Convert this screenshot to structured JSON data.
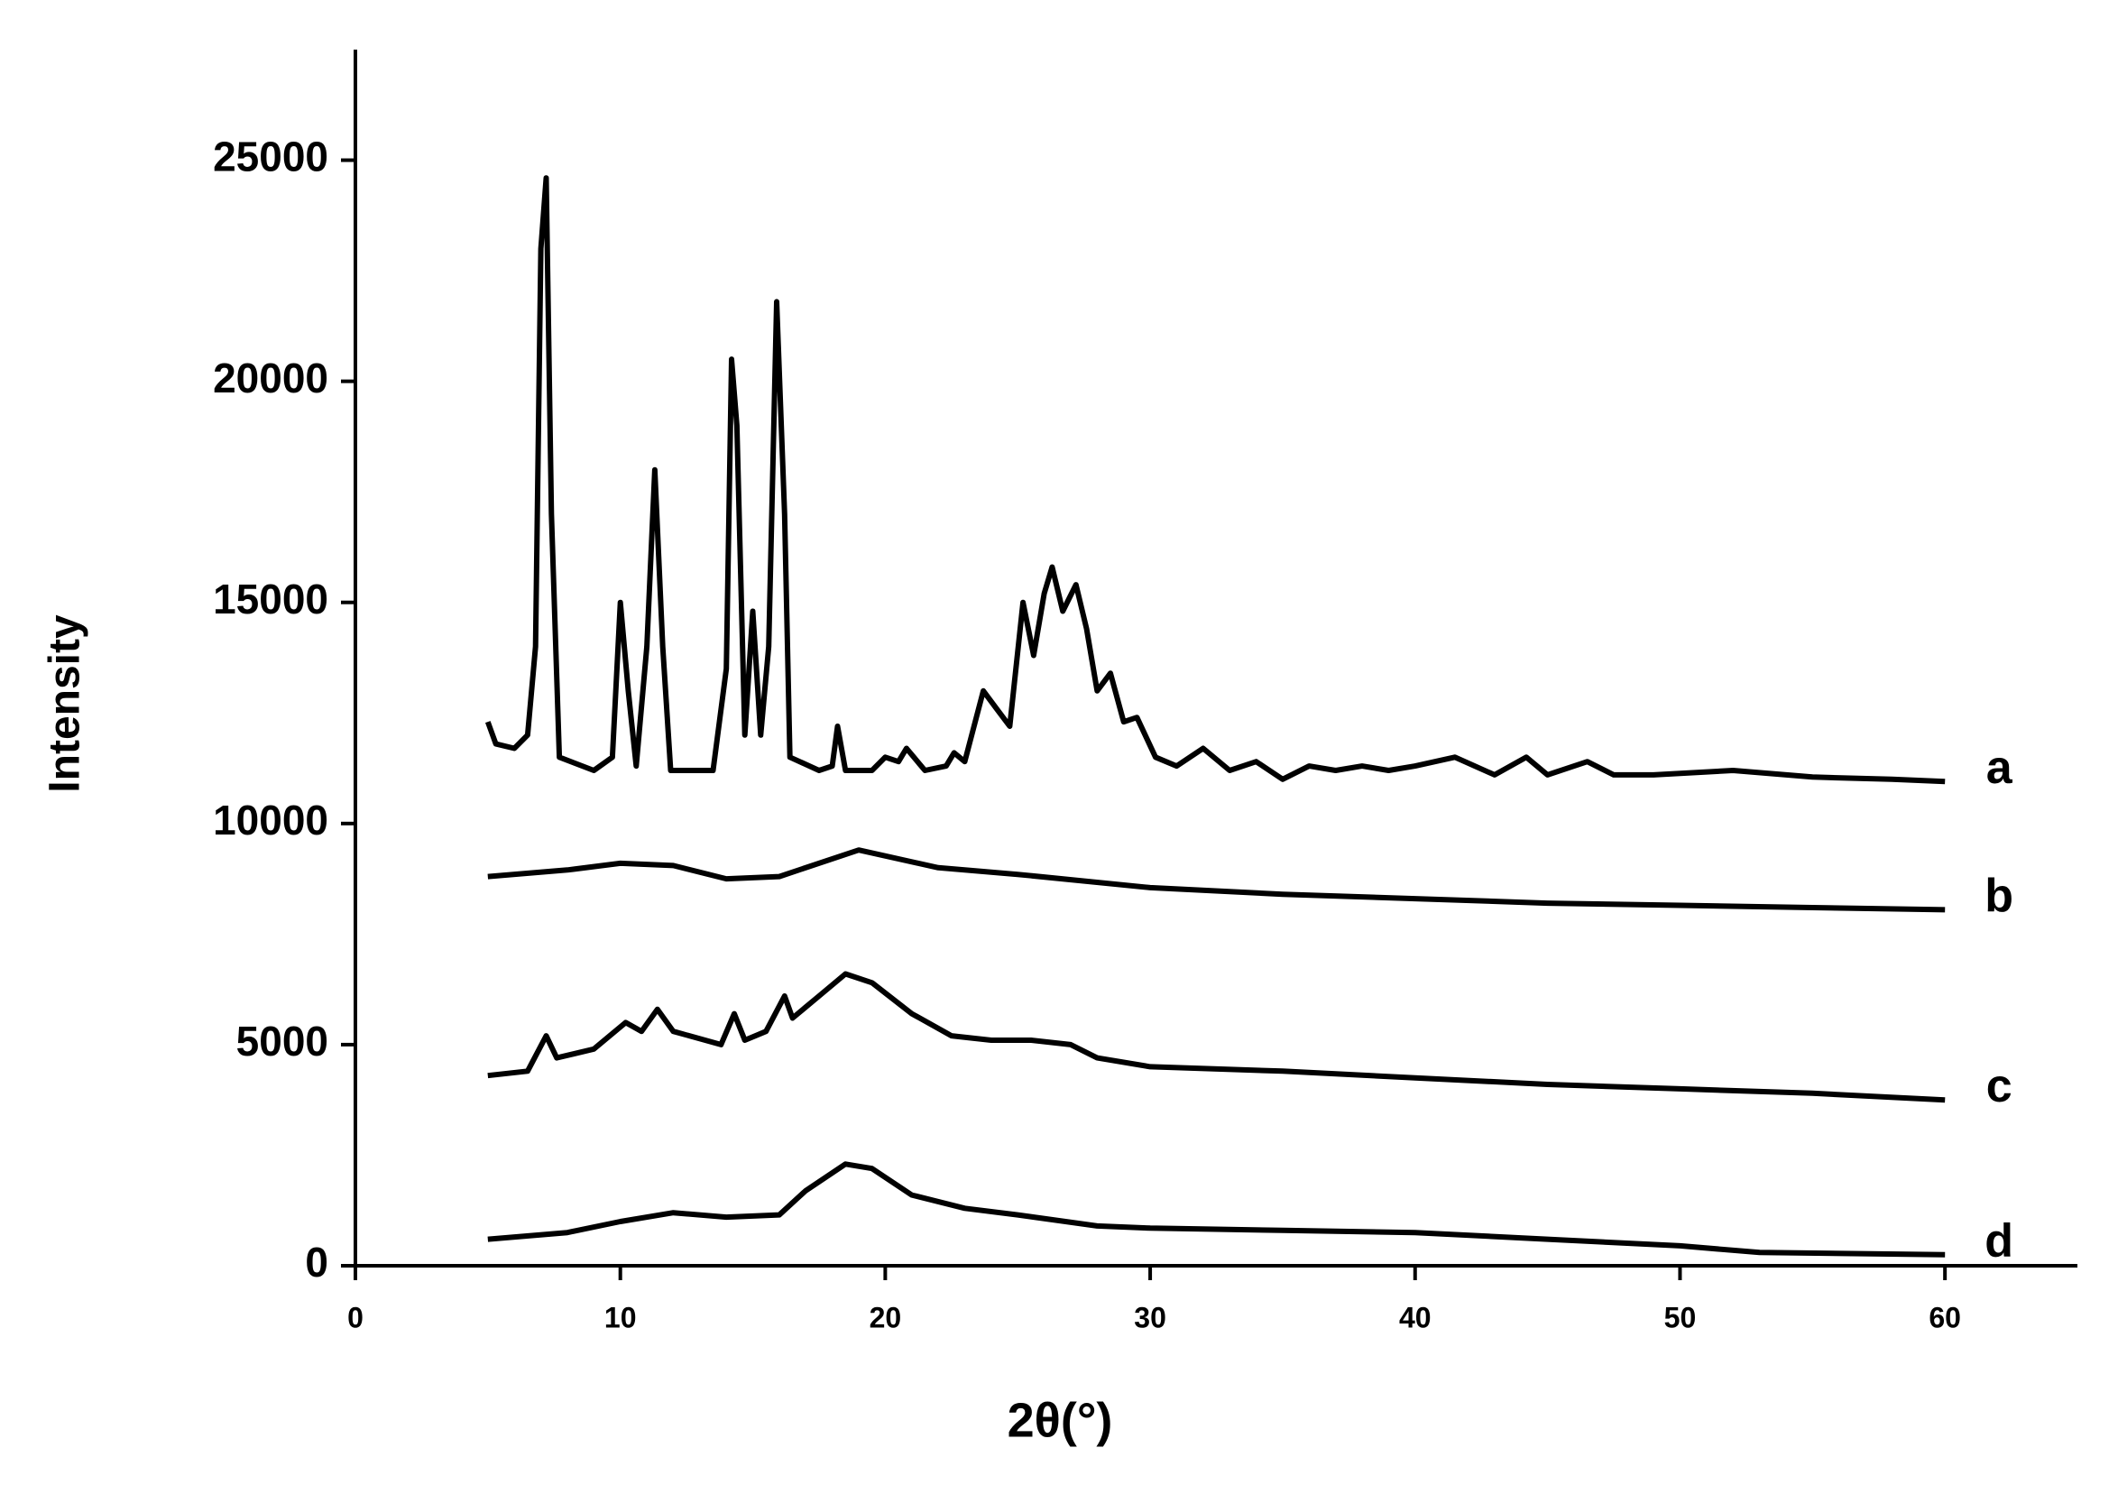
{
  "chart_data": {
    "type": "line",
    "xlabel": "2θ(°)",
    "ylabel": "Intensity",
    "xlim": [
      0,
      65
    ],
    "xticks": [
      0,
      10,
      20,
      30,
      40,
      50,
      60
    ],
    "ylim": [
      0,
      27500
    ],
    "yticks": [
      0,
      5000,
      10000,
      15000,
      20000,
      25000
    ],
    "grid": false,
    "series": [
      {
        "name": "a",
        "color": "#000000",
        "x": [
          5,
          5.3,
          6,
          6.5,
          6.8,
          7.0,
          7.2,
          7.4,
          7.7,
          9,
          9.7,
          10.0,
          10.3,
          10.6,
          11.0,
          11.3,
          11.6,
          11.9,
          13.5,
          14.0,
          14.2,
          14.4,
          14.7,
          15.0,
          15.3,
          15.6,
          15.9,
          16.2,
          16.4,
          17.5,
          18.0,
          18.2,
          18.5,
          19.5,
          20.0,
          20.5,
          20.8,
          21.5,
          22.3,
          22.6,
          23.0,
          23.7,
          24.2,
          24.7,
          25.2,
          25.6,
          26.0,
          26.3,
          26.7,
          27.2,
          27.6,
          28.0,
          28.5,
          29.0,
          29.5,
          30.2,
          31.0,
          32.0,
          33.0,
          34.0,
          35.0,
          36.0,
          37.0,
          38.0,
          39.0,
          40.0,
          41.5,
          43.0,
          44.2,
          45.0,
          46.5,
          47.5,
          49.0,
          52.0,
          55.0,
          58.0,
          60.0
        ],
        "values": [
          12300,
          11800,
          11700,
          12000,
          14000,
          23000,
          24600,
          17000,
          11500,
          11200,
          11500,
          15000,
          13000,
          11300,
          14000,
          18000,
          14000,
          11200,
          11200,
          13500,
          20500,
          19000,
          12000,
          14800,
          12000,
          14000,
          21800,
          17000,
          11500,
          11200,
          11300,
          12200,
          11200,
          11200,
          11500,
          11400,
          11700,
          11200,
          11300,
          11600,
          11400,
          13000,
          12600,
          12200,
          15000,
          13800,
          15200,
          15800,
          14800,
          15400,
          14400,
          13000,
          13400,
          12300,
          12400,
          11500,
          11300,
          11700,
          11200,
          11400,
          11000,
          11300,
          11200,
          11300,
          11200,
          11300,
          11500,
          11100,
          11500,
          11100,
          11400,
          11100,
          11100,
          11200,
          11050,
          11000,
          10950
        ]
      },
      {
        "name": "b",
        "color": "#000000",
        "x": [
          5,
          8,
          10,
          12,
          14,
          16,
          19,
          22,
          25,
          30,
          35,
          40,
          45,
          50,
          55,
          60
        ],
        "values": [
          8800,
          8950,
          9100,
          9050,
          8750,
          8800,
          9400,
          9000,
          8850,
          8550,
          8400,
          8300,
          8200,
          8150,
          8100,
          8050
        ]
      },
      {
        "name": "c",
        "color": "#000000",
        "x": [
          5,
          6.5,
          7.2,
          7.6,
          9,
          10.2,
          10.8,
          11.4,
          12,
          13.8,
          14.3,
          14.7,
          15.5,
          16.2,
          16.5,
          17.5,
          18.5,
          19.5,
          21,
          22.5,
          24,
          25.5,
          27,
          28,
          30,
          35,
          40,
          45,
          50,
          55,
          60
        ],
        "values": [
          4300,
          4400,
          5200,
          4700,
          4900,
          5500,
          5300,
          5800,
          5300,
          5000,
          5700,
          5100,
          5300,
          6100,
          5600,
          6100,
          6600,
          6400,
          5700,
          5200,
          5100,
          5100,
          5000,
          4700,
          4500,
          4400,
          4250,
          4100,
          4000,
          3900,
          3750
        ]
      },
      {
        "name": "d",
        "color": "#000000",
        "x": [
          5,
          8,
          10,
          12,
          14,
          16,
          17,
          18.5,
          19.5,
          21,
          23,
          25,
          28,
          30,
          35,
          40,
          45,
          50,
          53,
          60
        ],
        "values": [
          600,
          750,
          1000,
          1200,
          1100,
          1150,
          1700,
          2300,
          2200,
          1600,
          1300,
          1150,
          900,
          850,
          800,
          750,
          600,
          450,
          300,
          250
        ]
      }
    ]
  }
}
